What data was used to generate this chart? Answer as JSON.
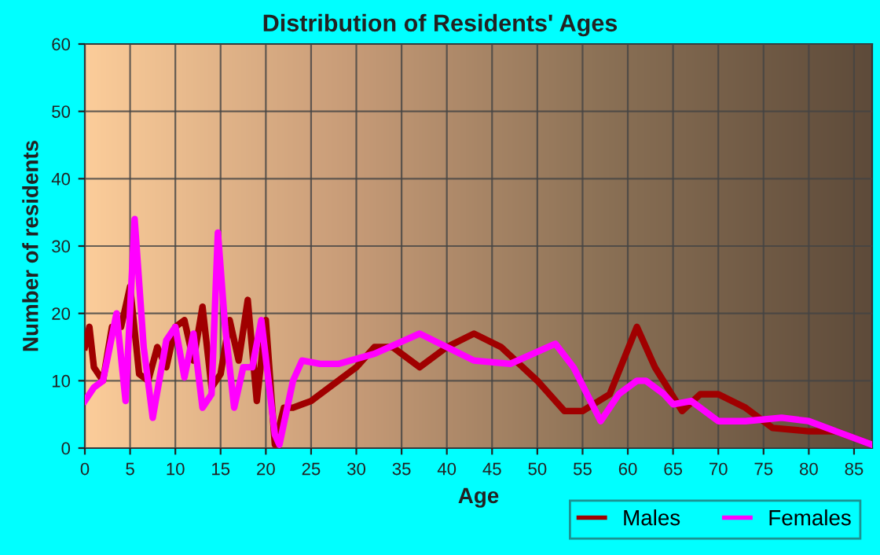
{
  "chart_data": {
    "type": "line",
    "title": "Distribution of Residents' Ages",
    "xlabel": "Age",
    "ylabel": "Number of residents",
    "xlim": [
      0,
      87
    ],
    "xticks": [
      0,
      5,
      10,
      15,
      20,
      25,
      30,
      35,
      40,
      45,
      50,
      55,
      60,
      65,
      70,
      75,
      80,
      85
    ],
    "ylim": [
      0,
      60
    ],
    "yticks": [
      0,
      10,
      20,
      30,
      40,
      50,
      60
    ],
    "grid": true,
    "legend": "bottom",
    "marker": "none",
    "line_style": "solid",
    "series": [
      {
        "name": "Males",
        "color": "#a00000",
        "x": [
          0,
          0.5,
          1,
          2,
          3,
          4,
          5,
          6,
          7,
          8,
          9,
          10,
          11,
          12,
          13,
          14,
          15,
          16,
          17,
          18,
          19,
          20,
          21,
          22,
          23,
          25,
          30,
          32,
          34,
          37,
          40,
          43,
          46,
          50,
          53,
          55,
          58,
          61,
          63,
          66,
          68,
          70,
          73,
          76,
          80,
          83,
          87
        ],
        "values": [
          15,
          18,
          12,
          10,
          18,
          18,
          24,
          11,
          10,
          15,
          12,
          18,
          19,
          13,
          21,
          9,
          11,
          19,
          13,
          22,
          7,
          19,
          0.5,
          6,
          6,
          7,
          12,
          15,
          15,
          12,
          15,
          17,
          15,
          10,
          5.5,
          5.5,
          8,
          18,
          12,
          5.5,
          8,
          8,
          6,
          3,
          2.5,
          2.5,
          0.5
        ]
      },
      {
        "name": "Females",
        "color": "#ff00ff",
        "x": [
          0,
          1,
          2,
          3.5,
          4.5,
          5.5,
          6.5,
          7.5,
          9,
          10,
          11,
          12,
          13,
          14,
          14.7,
          15.5,
          16.5,
          17.5,
          18.5,
          19.5,
          21,
          21.5,
          23,
          24,
          26,
          28,
          32,
          37,
          40,
          43,
          47,
          52,
          54,
          57,
          59,
          61,
          62,
          64,
          65,
          67,
          70,
          73,
          77,
          80,
          83,
          87
        ],
        "values": [
          7,
          9,
          10,
          20,
          7,
          34,
          15,
          4.5,
          16,
          18,
          10.5,
          17,
          6,
          8,
          32,
          18,
          6,
          12,
          12,
          19,
          2,
          0.5,
          10,
          13,
          12.5,
          12.5,
          14,
          17,
          15,
          13,
          12.5,
          15.5,
          12,
          4,
          8,
          10,
          10,
          8,
          6.5,
          7,
          4,
          4,
          4.5,
          4,
          2.5,
          0.5
        ]
      }
    ]
  }
}
